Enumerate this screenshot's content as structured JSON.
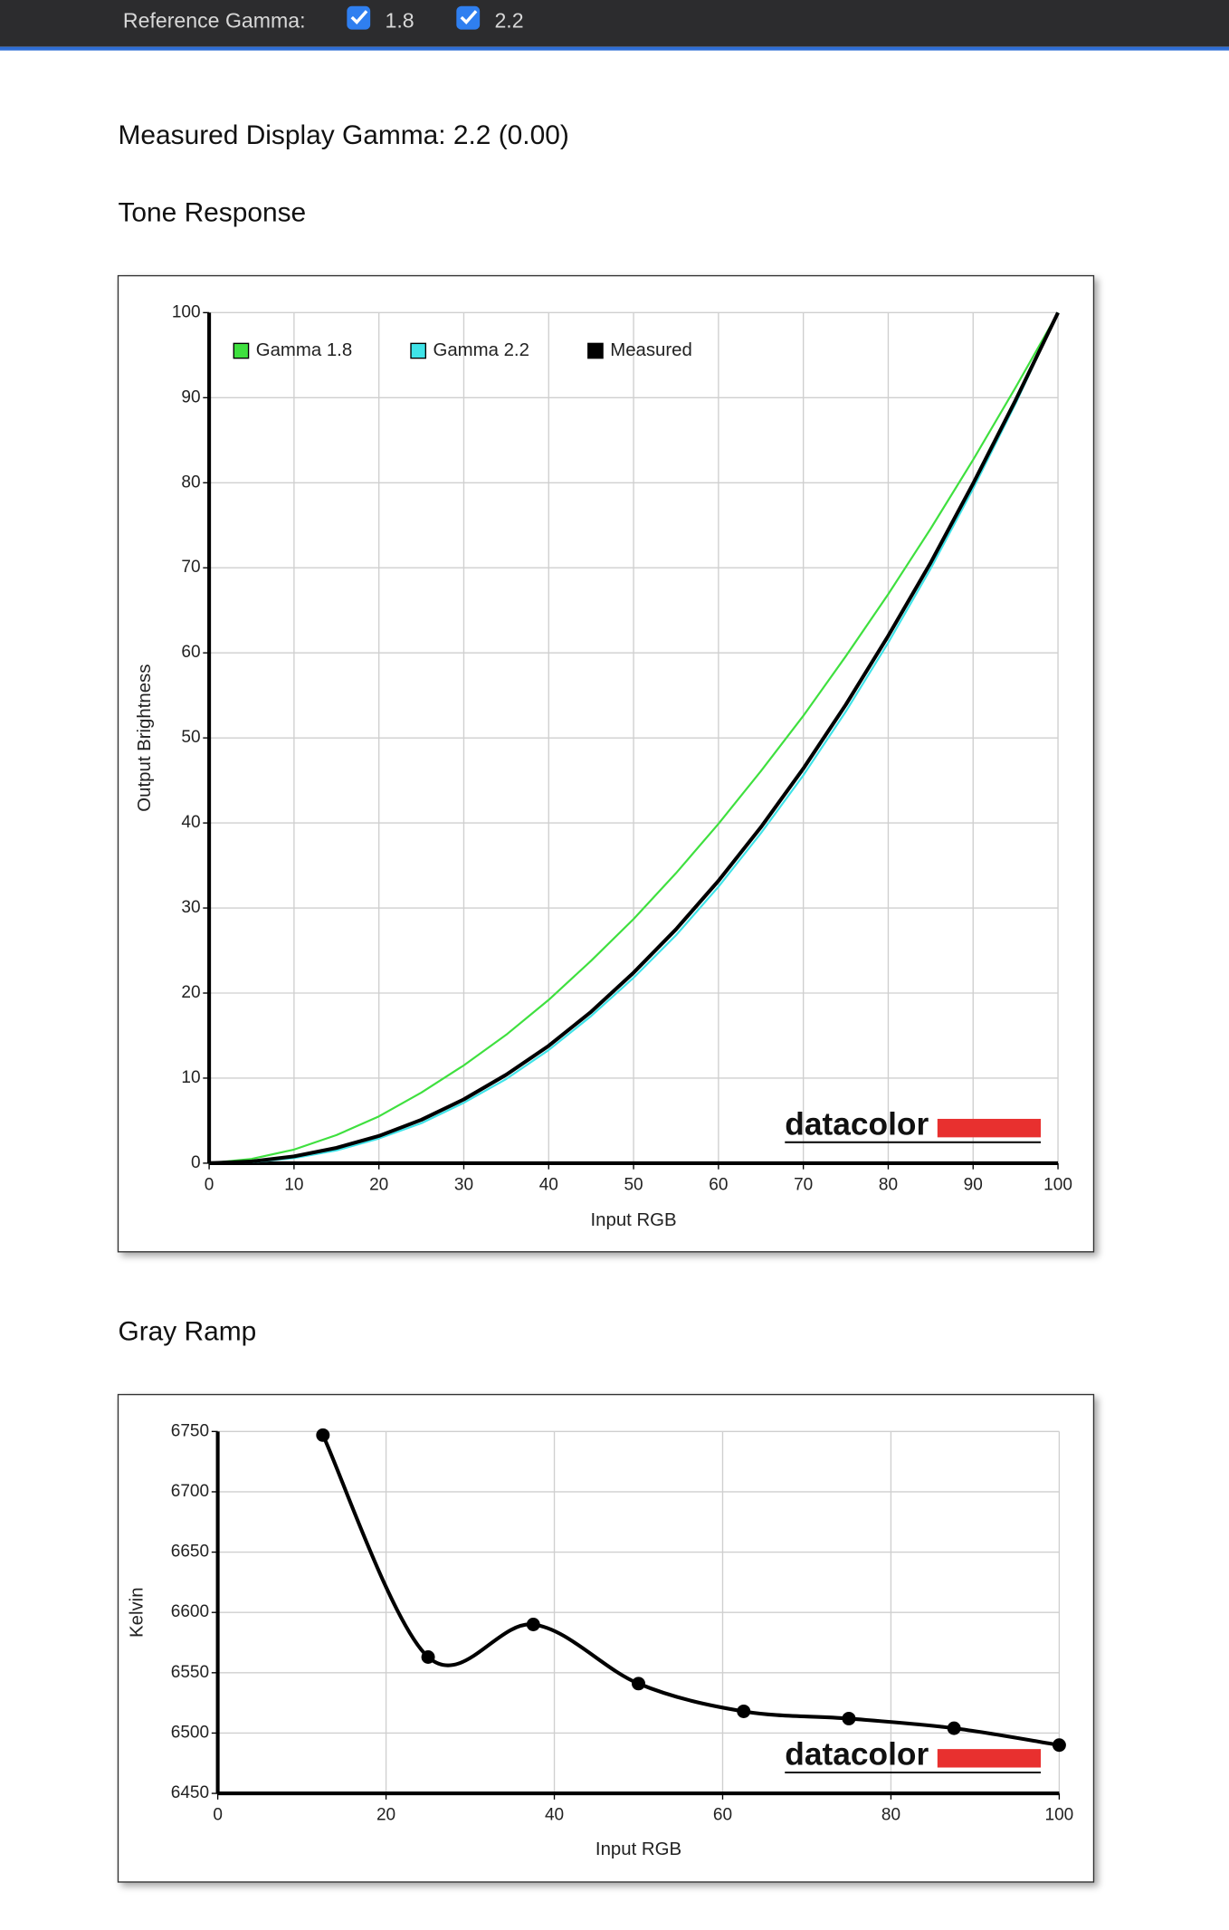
{
  "toolbar": {
    "label": "Reference Gamma:",
    "options": [
      "1.8",
      "2.2"
    ]
  },
  "headline": "Measured Display Gamma: 2.2 (0.00)",
  "chart_data": [
    {
      "type": "line",
      "title": "Tone Response",
      "x_label": "Input RGB",
      "y_label": "Output Brightness",
      "logo": "datacolor",
      "x": [
        0,
        5,
        10,
        15,
        20,
        25,
        30,
        35,
        40,
        45,
        50,
        55,
        60,
        65,
        70,
        75,
        80,
        85,
        90,
        95,
        100
      ],
      "series": [
        {
          "name": "Gamma 1.8",
          "color": "#3fe03f",
          "values": [
            0,
            0.5,
            1.6,
            3.3,
            5.5,
            8.3,
            11.5,
            15.1,
            19.2,
            23.8,
            28.7,
            34.1,
            39.9,
            46.1,
            52.6,
            59.6,
            66.9,
            74.6,
            82.7,
            91.2,
            100
          ]
        },
        {
          "name": "Gamma 2.2",
          "color": "#3fe3e8",
          "values": [
            0,
            0.1,
            0.6,
            1.5,
            2.9,
            4.7,
            7.1,
            9.9,
            13.3,
            17.3,
            21.8,
            26.8,
            32.5,
            38.8,
            45.6,
            53.1,
            61.2,
            69.9,
            79.3,
            89.3,
            100
          ]
        },
        {
          "name": "Measured",
          "color": "#000000",
          "values": [
            0,
            0.2,
            0.8,
            1.8,
            3.2,
            5.1,
            7.5,
            10.4,
            13.8,
            17.8,
            22.4,
            27.5,
            33.2,
            39.5,
            46.4,
            53.9,
            62,
            70.6,
            79.9,
            89.7,
            100
          ]
        }
      ],
      "xlim": [
        0,
        100
      ],
      "xticks": [
        0,
        10,
        20,
        30,
        40,
        50,
        60,
        70,
        80,
        90,
        100
      ],
      "ylim": [
        0,
        100
      ],
      "yticks": [
        0,
        10,
        20,
        30,
        40,
        50,
        60,
        70,
        80,
        90,
        100
      ],
      "grid": true,
      "legend": "top-left",
      "smooth": false,
      "markers": false
    },
    {
      "type": "line",
      "title": "Gray Ramp",
      "x_label": "Input RGB",
      "y_label": "Kelvin",
      "logo": "datacolor",
      "x": [
        12.5,
        25,
        37.5,
        50,
        62.5,
        75,
        87.5,
        100
      ],
      "series": [
        {
          "color": "#000000",
          "values": [
            6747,
            6563,
            6590,
            6541,
            6518,
            6512,
            6504,
            6490
          ]
        }
      ],
      "xlim": [
        0,
        100
      ],
      "xticks": [
        0,
        20,
        40,
        60,
        80,
        100
      ],
      "ylim": [
        6450,
        6750
      ],
      "yticks": [
        6450,
        6500,
        6550,
        6600,
        6650,
        6700,
        6750
      ],
      "grid": true,
      "smooth": true,
      "markers": true
    }
  ]
}
